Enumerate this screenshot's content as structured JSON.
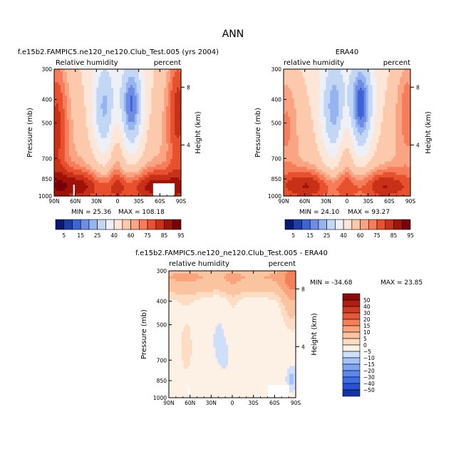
{
  "figure": {
    "title": "ANN"
  },
  "colors": {
    "rh_scale": [
      "#08196e",
      "#1e3caa",
      "#3c64d2",
      "#6e8ce6",
      "#96b4f0",
      "#c3d7f5",
      "#eef0f8",
      "#fde6d8",
      "#fcc9ad",
      "#fba484",
      "#f67c5a",
      "#e8512f",
      "#c83018",
      "#a01208",
      "#78000a"
    ],
    "diff_scale": [
      "#08196e",
      "#1432a5",
      "#2850d2",
      "#3c6ee6",
      "#5a87f0",
      "#7ea5f5",
      "#a5c3f8",
      "#cfdef9",
      "#fdf0e4",
      "#fcdcc3",
      "#fbc4a0",
      "#f9a47c",
      "#f48058",
      "#e8583a",
      "#cf3a22",
      "#b01e12",
      "#8c0a08"
    ]
  },
  "chart_data": [
    {
      "type": "heatmap",
      "id": "model",
      "title": "f.e15b2.FAMPIC5.ne120_ne120.Club_Test.005 (yrs 2004)",
      "left_label": "Relative humidity",
      "right_label": "percent",
      "ylabel": "Pressure (mb)",
      "ylabel_right": "Height (km)",
      "x_ticks": [
        "90N",
        "60N",
        "30N",
        "0",
        "30S",
        "60S",
        "90S"
      ],
      "y_ticks": [
        "300",
        "400",
        "500",
        "700",
        "850",
        "1000"
      ],
      "y_ticks_right": [
        "8",
        "4"
      ],
      "min_label": "MIN =   25.36",
      "max_label": "MAX =  108.18",
      "min": 25.36,
      "max": 108.18
    },
    {
      "type": "heatmap",
      "id": "obs",
      "title": "ERA40",
      "left_label": "relative humidity",
      "right_label": "percent",
      "ylabel": "Pressure (mb)",
      "ylabel_right": "Height (km)",
      "x_ticks": [
        "90N",
        "60N",
        "30N",
        "0",
        "30S",
        "60S",
        "90S"
      ],
      "y_ticks": [
        "300",
        "400",
        "500",
        "700",
        "850",
        "1000"
      ],
      "y_ticks_right": [
        "8",
        "4"
      ],
      "min_label": "MIN =   24.10",
      "max_label": "MAX =   93.27",
      "min": 24.1,
      "max": 93.27
    },
    {
      "type": "heatmap",
      "id": "diff",
      "title": "f.e15b2.FAMPIC5.ne120_ne120.Club_Test.005  -  ERA40",
      "left_label": "relative humidity",
      "right_label": "percent",
      "ylabel": "Pressure (mb)",
      "ylabel_right": "Height (km)",
      "x_ticks": [
        "90N",
        "60N",
        "30N",
        "0",
        "30S",
        "60S",
        "90S"
      ],
      "y_ticks": [
        "300",
        "400",
        "500",
        "700",
        "850",
        "1000"
      ],
      "y_ticks_right": [
        "8",
        "4"
      ],
      "min_label": "MIN = -34.68",
      "max_label": "MAX =  23.85",
      "min": -34.68,
      "max": 23.85
    }
  ],
  "colorbars": {
    "rh_labels": [
      "5",
      "15",
      "25",
      "40",
      "60",
      "75",
      "85",
      "95"
    ],
    "diff_labels": [
      "50",
      "40",
      "30",
      "20",
      "15",
      "10",
      "5",
      "0",
      "−5",
      "−10",
      "−15",
      "−20",
      "−30",
      "−40",
      "−50"
    ]
  }
}
